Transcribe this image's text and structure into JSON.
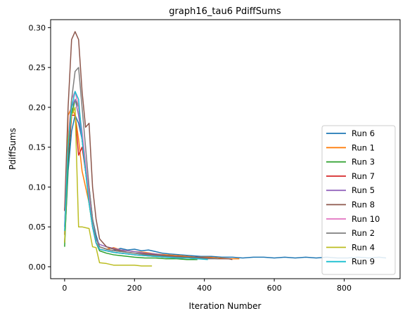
{
  "chart_data": {
    "type": "line",
    "title": "graph16_tau6 PdiffSums",
    "xlabel": "Iteration Number",
    "ylabel": "PdiffSums",
    "xlim": [
      -40,
      960
    ],
    "ylim": [
      -0.015,
      0.31
    ],
    "xticks": [
      0,
      200,
      400,
      600,
      800
    ],
    "yticks": [
      0.0,
      0.05,
      0.1,
      0.15,
      0.2,
      0.25,
      0.3
    ],
    "xtick_labels": [
      "0",
      "200",
      "400",
      "600",
      "800"
    ],
    "ytick_labels": [
      "0.00",
      "0.05",
      "0.10",
      "0.15",
      "0.20",
      "0.25",
      "0.30"
    ],
    "grid": false,
    "legend_position": "lower-right",
    "series": [
      {
        "name": "Run 6",
        "color": "#1f77b4",
        "x": [
          0,
          10,
          20,
          30,
          40,
          50,
          60,
          70,
          80,
          90,
          100,
          120,
          140,
          160,
          180,
          200,
          220,
          240,
          260,
          280,
          300,
          330,
          360,
          390,
          420,
          450,
          480,
          510,
          540,
          570,
          600,
          630,
          660,
          690,
          720,
          750,
          780,
          810,
          840,
          870,
          900,
          920
        ],
        "y": [
          0.03,
          0.12,
          0.17,
          0.19,
          0.18,
          0.16,
          0.12,
          0.1,
          0.06,
          0.04,
          0.025,
          0.022,
          0.02,
          0.023,
          0.021,
          0.022,
          0.02,
          0.021,
          0.019,
          0.017,
          0.016,
          0.015,
          0.014,
          0.013,
          0.013,
          0.012,
          0.012,
          0.011,
          0.012,
          0.012,
          0.011,
          0.012,
          0.011,
          0.012,
          0.011,
          0.012,
          0.011,
          0.011,
          0.012,
          0.011,
          0.012,
          0.011
        ]
      },
      {
        "name": "Run 1",
        "color": "#ff7f0e",
        "x": [
          0,
          10,
          20,
          30,
          40,
          50,
          60,
          70,
          80,
          90,
          100,
          120,
          140,
          160,
          180,
          200,
          230,
          260,
          290,
          320,
          350,
          380,
          410,
          440,
          470,
          500
        ],
        "y": [
          0.04,
          0.19,
          0.2,
          0.19,
          0.16,
          0.12,
          0.1,
          0.08,
          0.05,
          0.03,
          0.025,
          0.022,
          0.024,
          0.021,
          0.02,
          0.019,
          0.018,
          0.016,
          0.015,
          0.014,
          0.013,
          0.012,
          0.012,
          0.011,
          0.01,
          0.01
        ]
      },
      {
        "name": "Run 3",
        "color": "#2ca02c",
        "x": [
          0,
          10,
          20,
          30,
          40,
          50,
          60,
          70,
          80,
          90,
          100,
          120,
          140,
          160,
          180,
          200,
          230,
          260,
          290,
          320,
          350,
          380
        ],
        "y": [
          0.025,
          0.13,
          0.19,
          0.21,
          0.2,
          0.16,
          0.12,
          0.08,
          0.05,
          0.03,
          0.02,
          0.017,
          0.015,
          0.014,
          0.013,
          0.012,
          0.011,
          0.011,
          0.01,
          0.01,
          0.009,
          0.009
        ]
      },
      {
        "name": "Run 7",
        "color": "#d62728",
        "x": [
          0,
          10,
          20,
          30,
          40,
          50,
          60,
          70,
          80,
          90,
          100,
          120,
          140,
          160,
          180,
          200,
          230,
          260,
          290,
          320,
          350,
          380,
          410
        ],
        "y": [
          0.07,
          0.14,
          0.19,
          0.19,
          0.14,
          0.15,
          0.12,
          0.09,
          0.05,
          0.03,
          0.022,
          0.02,
          0.018,
          0.017,
          0.016,
          0.015,
          0.014,
          0.013,
          0.012,
          0.011,
          0.011,
          0.01,
          0.01
        ]
      },
      {
        "name": "Run 5",
        "color": "#9467bd",
        "x": [
          0,
          10,
          20,
          30,
          40,
          50,
          60,
          70,
          80,
          90,
          100,
          120,
          140,
          160,
          180,
          200,
          230,
          260,
          290,
          320,
          350,
          380,
          410,
          440
        ],
        "y": [
          0.05,
          0.15,
          0.2,
          0.21,
          0.19,
          0.16,
          0.12,
          0.09,
          0.05,
          0.035,
          0.028,
          0.025,
          0.023,
          0.021,
          0.02,
          0.019,
          0.017,
          0.016,
          0.014,
          0.013,
          0.012,
          0.012,
          0.011,
          0.01
        ]
      },
      {
        "name": "Run 8",
        "color": "#8c564b",
        "x": [
          0,
          10,
          20,
          30,
          40,
          50,
          60,
          70,
          80,
          90,
          100,
          120,
          140,
          160,
          180,
          200,
          230,
          260,
          290,
          320,
          350,
          380,
          410,
          440,
          470,
          480
        ],
        "y": [
          0.07,
          0.2,
          0.285,
          0.295,
          0.285,
          0.22,
          0.175,
          0.18,
          0.1,
          0.06,
          0.035,
          0.025,
          0.022,
          0.02,
          0.018,
          0.017,
          0.016,
          0.015,
          0.014,
          0.013,
          0.012,
          0.012,
          0.011,
          0.01,
          0.01,
          0.009
        ]
      },
      {
        "name": "Run 10",
        "color": "#e377c2",
        "x": [
          0,
          10,
          20,
          30,
          40,
          50,
          60,
          70,
          80,
          90,
          100,
          120,
          140,
          160,
          180,
          200,
          230,
          260,
          290,
          320,
          350,
          380,
          410
        ],
        "y": [
          0.05,
          0.16,
          0.21,
          0.22,
          0.2,
          0.17,
          0.13,
          0.09,
          0.05,
          0.03,
          0.022,
          0.02,
          0.018,
          0.017,
          0.016,
          0.015,
          0.014,
          0.013,
          0.012,
          0.011,
          0.011,
          0.01,
          0.01
        ]
      },
      {
        "name": "Run 2",
        "color": "#7f7f7f",
        "x": [
          0,
          10,
          20,
          30,
          40,
          50,
          60,
          70,
          80,
          90,
          100,
          120,
          140,
          160,
          180,
          200,
          230,
          260,
          290,
          320,
          350,
          380,
          410,
          440
        ],
        "y": [
          0.04,
          0.15,
          0.21,
          0.245,
          0.25,
          0.2,
          0.15,
          0.1,
          0.06,
          0.035,
          0.025,
          0.022,
          0.02,
          0.019,
          0.018,
          0.017,
          0.015,
          0.014,
          0.013,
          0.012,
          0.011,
          0.011,
          0.01,
          0.01
        ]
      },
      {
        "name": "Run 4",
        "color": "#bcbd22",
        "x": [
          0,
          10,
          20,
          30,
          40,
          50,
          60,
          70,
          80,
          90,
          100,
          120,
          140,
          160,
          180,
          200,
          220,
          250
        ],
        "y": [
          0.03,
          0.16,
          0.19,
          0.2,
          0.05,
          0.05,
          0.049,
          0.048,
          0.025,
          0.024,
          0.005,
          0.004,
          0.002,
          0.002,
          0.002,
          0.002,
          0.001,
          0.001
        ]
      },
      {
        "name": "Run 9",
        "color": "#17becf",
        "x": [
          0,
          10,
          20,
          30,
          40,
          50,
          60,
          70,
          80,
          90,
          100,
          120,
          140,
          160,
          180,
          200,
          230,
          260,
          290,
          320,
          350,
          380,
          410
        ],
        "y": [
          0.045,
          0.15,
          0.2,
          0.22,
          0.21,
          0.16,
          0.12,
          0.08,
          0.05,
          0.03,
          0.022,
          0.02,
          0.018,
          0.017,
          0.016,
          0.015,
          0.014,
          0.013,
          0.012,
          0.011,
          0.011,
          0.01,
          0.009
        ]
      }
    ]
  }
}
